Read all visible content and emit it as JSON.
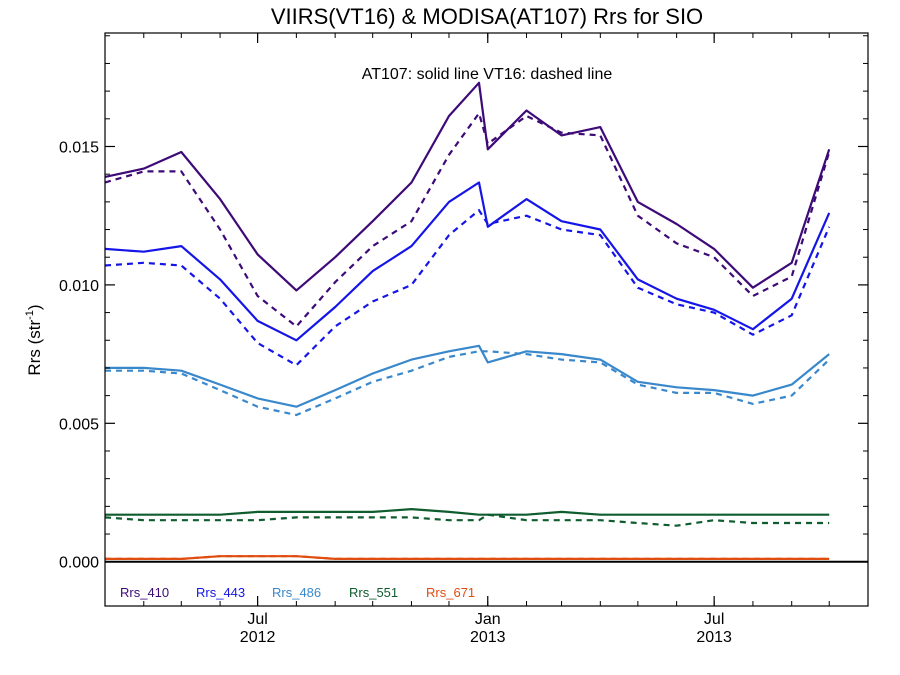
{
  "chart_data": {
    "type": "line",
    "title": "VIIRS(VT16) & MODISA(AT107)  Rrs for SIO",
    "annotation": "AT107: solid line   VT16: dashed line",
    "ylabel": "Rrs (str",
    "ylabel_sup": "-1",
    "ylabel_close": ")",
    "xlabel": "",
    "ylim": [
      -0.0016,
      0.0191
    ],
    "yticks": [
      "0.000",
      "0.005",
      "0.010",
      "0.015"
    ],
    "ytick_values": [
      0.0,
      0.005,
      0.01,
      0.015
    ],
    "xlim": [
      "2012-03-01",
      "2013-11-01"
    ],
    "xticks": [
      {
        "date": "2012-07-01",
        "month": "Jul",
        "year": "2012"
      },
      {
        "date": "2013-01-01",
        "month": "Jan",
        "year": "2013"
      },
      {
        "date": "2013-07-01",
        "month": "Jul",
        "year": "2013"
      }
    ],
    "x": [
      "2012-03-01",
      "2012-04-01",
      "2012-05-01",
      "2012-06-01",
      "2012-07-01",
      "2012-08-01",
      "2012-09-01",
      "2012-10-01",
      "2012-11-01",
      "2012-12-01",
      "2012-12-25",
      "2013-01-01",
      "2013-02-01",
      "2013-03-01",
      "2013-04-01",
      "2013-05-01",
      "2013-06-01",
      "2013-07-01",
      "2013-08-01",
      "2013-09-01",
      "2013-10-01",
      "2013-11-01"
    ],
    "series": [
      {
        "name": "Rrs_410",
        "color": "#3d0a78",
        "style": "solid",
        "values": [
          0.0139,
          0.0142,
          0.0148,
          0.0131,
          0.0111,
          0.0098,
          0.011,
          0.0123,
          0.0137,
          0.0161,
          0.0173,
          0.0149,
          0.0163,
          0.0154,
          0.0157,
          0.013,
          0.0122,
          0.0113,
          0.0099,
          0.0108,
          0.0149,
          null
        ]
      },
      {
        "name": "Rrs_410",
        "color": "#3d0a78",
        "style": "dashed",
        "values": [
          0.0137,
          0.0141,
          0.0141,
          0.012,
          0.0096,
          0.0085,
          0.0101,
          0.0114,
          0.0123,
          0.0147,
          0.0162,
          0.0151,
          0.0161,
          0.0155,
          0.0154,
          0.0125,
          0.0115,
          0.011,
          0.0096,
          0.0103,
          0.0148,
          null
        ]
      },
      {
        "name": "Rrs_443",
        "color": "#1515e8",
        "style": "solid",
        "values": [
          0.0113,
          0.0112,
          0.0114,
          0.0102,
          0.0087,
          0.008,
          0.0092,
          0.0105,
          0.0114,
          0.013,
          0.0137,
          0.0121,
          0.0131,
          0.0123,
          0.012,
          0.0102,
          0.0095,
          0.0091,
          0.0084,
          0.0095,
          0.0126,
          null
        ]
      },
      {
        "name": "Rrs_443",
        "color": "#1515e8",
        "style": "dashed",
        "values": [
          0.0107,
          0.0108,
          0.0107,
          0.0095,
          0.0079,
          0.0071,
          0.0085,
          0.0094,
          0.01,
          0.0118,
          0.0127,
          0.0122,
          0.0125,
          0.012,
          0.0118,
          0.0099,
          0.0093,
          0.009,
          0.0082,
          0.0089,
          0.0121,
          null
        ]
      },
      {
        "name": "Rrs_486",
        "color": "#3a88cc",
        "style": "solid",
        "values": [
          0.007,
          0.007,
          0.0069,
          0.0064,
          0.0059,
          0.0056,
          0.0062,
          0.0068,
          0.0073,
          0.0076,
          0.0078,
          0.0072,
          0.0076,
          0.0075,
          0.0073,
          0.0065,
          0.0063,
          0.0062,
          0.006,
          0.0064,
          0.0075,
          null
        ]
      },
      {
        "name": "Rrs_486",
        "color": "#3a88cc",
        "style": "dashed",
        "values": [
          0.0069,
          0.0069,
          0.0068,
          0.0062,
          0.0056,
          0.0053,
          0.0059,
          0.0065,
          0.0069,
          0.0074,
          0.0076,
          0.0076,
          0.0075,
          0.0073,
          0.0072,
          0.0064,
          0.0061,
          0.0061,
          0.0057,
          0.006,
          0.0073,
          null
        ]
      },
      {
        "name": "Rrs_551",
        "color": "#0f5c2e",
        "style": "solid",
        "values": [
          0.0017,
          0.0017,
          0.0017,
          0.0017,
          0.0018,
          0.0018,
          0.0018,
          0.0018,
          0.0019,
          0.0018,
          0.0017,
          0.0017,
          0.0017,
          0.0018,
          0.0017,
          0.0017,
          0.0017,
          0.0017,
          0.0017,
          0.0017,
          0.0017,
          null
        ]
      },
      {
        "name": "Rrs_551",
        "color": "#0f5c2e",
        "style": "dashed",
        "values": [
          0.0016,
          0.0015,
          0.0015,
          0.0015,
          0.0015,
          0.0016,
          0.0016,
          0.0016,
          0.0016,
          0.0015,
          0.0015,
          0.0017,
          0.0015,
          0.0015,
          0.0015,
          0.0014,
          0.0013,
          0.0015,
          0.0014,
          0.0014,
          0.0014,
          null
        ]
      },
      {
        "name": "Rrs_671",
        "color": "#e04d10",
        "style": "solid",
        "values": [
          0.0001,
          0.0001,
          0.0001,
          0.0002,
          0.0002,
          0.0002,
          0.0001,
          0.0001,
          0.0001,
          0.0001,
          0.0001,
          0.0001,
          0.0001,
          0.0001,
          0.0001,
          0.0001,
          0.0001,
          0.0001,
          0.0001,
          0.0001,
          0.0001,
          null
        ]
      },
      {
        "name": "Rrs_671",
        "color": "#e04d10",
        "style": "dashed",
        "values": [
          0.0001,
          0.0001,
          0.0001,
          0.0002,
          0.0002,
          0.0002,
          0.0001,
          0.0001,
          0.0001,
          0.0001,
          0.0001,
          0.0001,
          0.0001,
          0.0001,
          0.0001,
          0.0001,
          0.0001,
          0.0001,
          0.0001,
          0.0001,
          0.0001,
          null
        ]
      }
    ],
    "legend": [
      {
        "label": "Rrs_410",
        "color": "#3d0a78"
      },
      {
        "label": "Rrs_443",
        "color": "#1515e8"
      },
      {
        "label": "Rrs_486",
        "color": "#3a88cc"
      },
      {
        "label": "Rrs_551",
        "color": "#0f5c2e"
      },
      {
        "label": "Rrs_671",
        "color": "#e04d10"
      }
    ],
    "legend_position": "bottom-left",
    "zero_line": true,
    "grid": false
  }
}
